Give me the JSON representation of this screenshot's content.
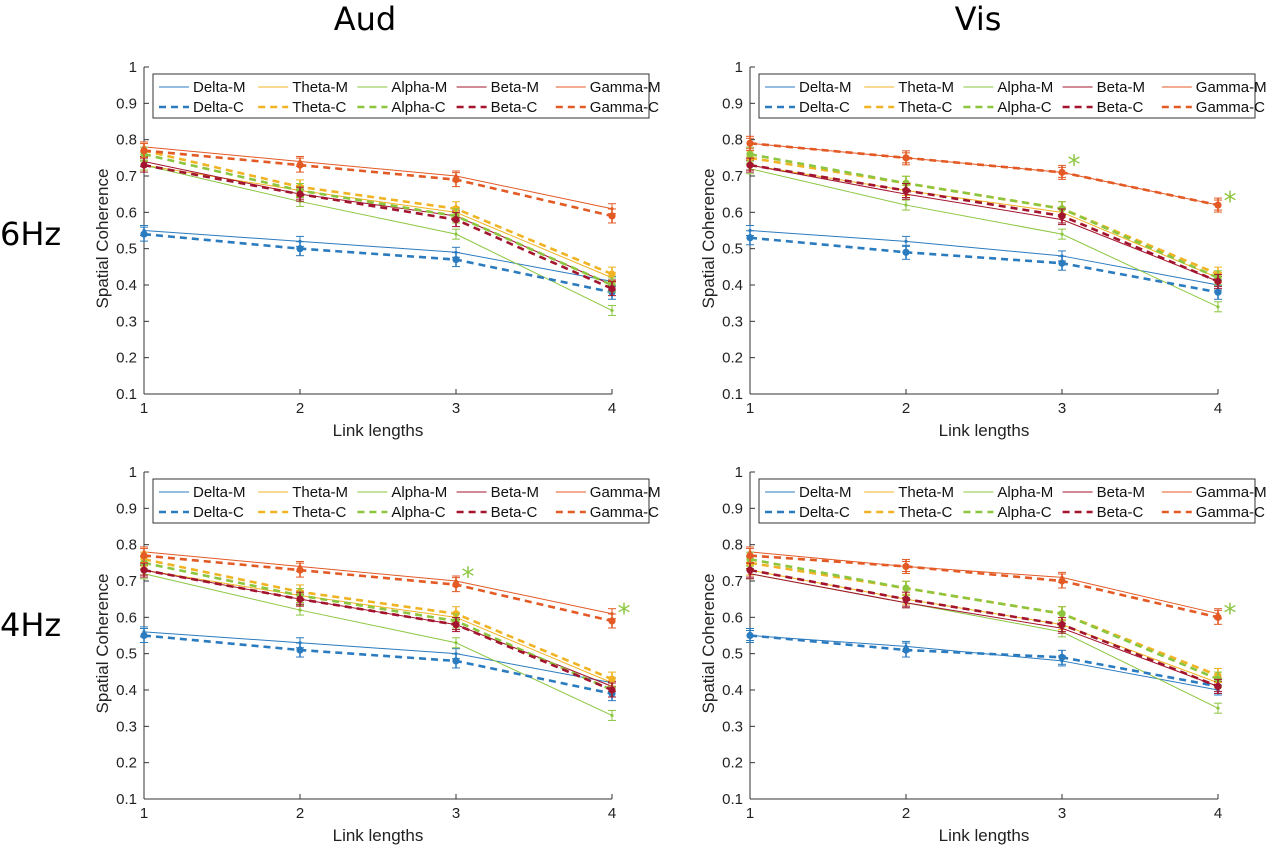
{
  "headers": {
    "columns": [
      "Aud",
      "Vis"
    ],
    "rows": [
      "6Hz",
      "4Hz"
    ]
  },
  "colors": {
    "Delta": "#2b7bbf",
    "Theta": "#f0b323",
    "Alpha": "#8cc63f",
    "Beta": "#a3152e",
    "Gamma": "#e35a25",
    "significance": "#8cc63f"
  },
  "chart_data": [
    {
      "type": "line",
      "panel": "Aud-6Hz",
      "xlabel": "Link lengths",
      "ylabel": "Spatial Coherence",
      "x": [
        1,
        2,
        3,
        4
      ],
      "xticks": [
        "1",
        "2",
        "3",
        "4"
      ],
      "ylim": [
        0.1,
        1
      ],
      "yticks": [
        "0.1",
        "0.2",
        "0.3",
        "0.4",
        "0.5",
        "0.6",
        "0.7",
        "0.8",
        "0.9",
        "1"
      ],
      "legend": "top",
      "series": [
        {
          "name": "Delta-M",
          "band": "Delta",
          "style": "solid",
          "values": [
            0.55,
            0.52,
            0.49,
            0.41
          ]
        },
        {
          "name": "Theta-M",
          "band": "Theta",
          "style": "solid",
          "values": [
            0.73,
            0.66,
            0.6,
            0.42
          ]
        },
        {
          "name": "Alpha-M",
          "band": "Alpha",
          "style": "solid",
          "values": [
            0.73,
            0.63,
            0.54,
            0.33
          ]
        },
        {
          "name": "Beta-M",
          "band": "Beta",
          "style": "solid",
          "values": [
            0.74,
            0.65,
            0.59,
            0.4
          ]
        },
        {
          "name": "Gamma-M",
          "band": "Gamma",
          "style": "solid",
          "values": [
            0.78,
            0.74,
            0.7,
            0.61
          ]
        },
        {
          "name": "Delta-C",
          "band": "Delta",
          "style": "dashed",
          "values": [
            0.54,
            0.5,
            0.47,
            0.38
          ]
        },
        {
          "name": "Theta-C",
          "band": "Theta",
          "style": "dashed",
          "values": [
            0.77,
            0.67,
            0.61,
            0.43
          ]
        },
        {
          "name": "Alpha-C",
          "band": "Alpha",
          "style": "dashed",
          "values": [
            0.76,
            0.66,
            0.59,
            0.4
          ]
        },
        {
          "name": "Beta-C",
          "band": "Beta",
          "style": "dashed",
          "values": [
            0.73,
            0.65,
            0.58,
            0.39
          ]
        },
        {
          "name": "Gamma-C",
          "band": "Gamma",
          "style": "dashed",
          "values": [
            0.77,
            0.73,
            0.69,
            0.59
          ]
        }
      ],
      "significance": []
    },
    {
      "type": "line",
      "panel": "Vis-6Hz",
      "xlabel": "Link lengths",
      "ylabel": "Spatial Coherence",
      "x": [
        1,
        2,
        3,
        4
      ],
      "xticks": [
        "1",
        "2",
        "3",
        "4"
      ],
      "ylim": [
        0.1,
        1
      ],
      "yticks": [
        "0.1",
        "0.2",
        "0.3",
        "0.4",
        "0.5",
        "0.6",
        "0.7",
        "0.8",
        "0.9",
        "1"
      ],
      "legend": "top",
      "series": [
        {
          "name": "Delta-M",
          "band": "Delta",
          "style": "solid",
          "values": [
            0.55,
            0.52,
            0.48,
            0.4
          ]
        },
        {
          "name": "Theta-M",
          "band": "Theta",
          "style": "solid",
          "values": [
            0.73,
            0.66,
            0.6,
            0.42
          ]
        },
        {
          "name": "Alpha-M",
          "band": "Alpha",
          "style": "solid",
          "values": [
            0.72,
            0.62,
            0.54,
            0.34
          ]
        },
        {
          "name": "Beta-M",
          "band": "Beta",
          "style": "solid",
          "values": [
            0.73,
            0.65,
            0.58,
            0.41
          ]
        },
        {
          "name": "Gamma-M",
          "band": "Gamma",
          "style": "solid",
          "values": [
            0.79,
            0.75,
            0.71,
            0.62
          ]
        },
        {
          "name": "Delta-C",
          "band": "Delta",
          "style": "dashed",
          "values": [
            0.53,
            0.49,
            0.46,
            0.38
          ]
        },
        {
          "name": "Theta-C",
          "band": "Theta",
          "style": "dashed",
          "values": [
            0.75,
            0.68,
            0.61,
            0.43
          ]
        },
        {
          "name": "Alpha-C",
          "band": "Alpha",
          "style": "dashed",
          "values": [
            0.76,
            0.68,
            0.61,
            0.42
          ]
        },
        {
          "name": "Beta-C",
          "band": "Beta",
          "style": "dashed",
          "values": [
            0.73,
            0.66,
            0.59,
            0.41
          ]
        },
        {
          "name": "Gamma-C",
          "band": "Gamma",
          "style": "dashed",
          "values": [
            0.79,
            0.75,
            0.71,
            0.62
          ]
        }
      ],
      "significance": [
        {
          "x": 3,
          "y": 0.74,
          "label": "*"
        },
        {
          "x": 4,
          "y": 0.64,
          "label": "*"
        }
      ]
    },
    {
      "type": "line",
      "panel": "Aud-4Hz",
      "xlabel": "Link lengths",
      "ylabel": "Spatial Coherence",
      "x": [
        1,
        2,
        3,
        4
      ],
      "xticks": [
        "1",
        "2",
        "3",
        "4"
      ],
      "ylim": [
        0.1,
        1
      ],
      "yticks": [
        "0.1",
        "0.2",
        "0.3",
        "0.4",
        "0.5",
        "0.6",
        "0.7",
        "0.8",
        "0.9",
        "1"
      ],
      "legend": "top",
      "series": [
        {
          "name": "Delta-M",
          "band": "Delta",
          "style": "solid",
          "values": [
            0.56,
            0.53,
            0.5,
            0.42
          ]
        },
        {
          "name": "Theta-M",
          "band": "Theta",
          "style": "solid",
          "values": [
            0.73,
            0.66,
            0.6,
            0.42
          ]
        },
        {
          "name": "Alpha-M",
          "band": "Alpha",
          "style": "solid",
          "values": [
            0.72,
            0.62,
            0.53,
            0.33
          ]
        },
        {
          "name": "Beta-M",
          "band": "Beta",
          "style": "solid",
          "values": [
            0.73,
            0.65,
            0.58,
            0.41
          ]
        },
        {
          "name": "Gamma-M",
          "band": "Gamma",
          "style": "solid",
          "values": [
            0.78,
            0.74,
            0.7,
            0.61
          ]
        },
        {
          "name": "Delta-C",
          "band": "Delta",
          "style": "dashed",
          "values": [
            0.55,
            0.51,
            0.48,
            0.39
          ]
        },
        {
          "name": "Theta-C",
          "band": "Theta",
          "style": "dashed",
          "values": [
            0.76,
            0.67,
            0.61,
            0.43
          ]
        },
        {
          "name": "Alpha-C",
          "band": "Alpha",
          "style": "dashed",
          "values": [
            0.75,
            0.66,
            0.59,
            0.4
          ]
        },
        {
          "name": "Beta-C",
          "band": "Beta",
          "style": "dashed",
          "values": [
            0.73,
            0.65,
            0.58,
            0.4
          ]
        },
        {
          "name": "Gamma-C",
          "band": "Gamma",
          "style": "dashed",
          "values": [
            0.77,
            0.73,
            0.69,
            0.59
          ]
        }
      ],
      "significance": [
        {
          "x": 3,
          "y": 0.72,
          "label": "*"
        },
        {
          "x": 4,
          "y": 0.62,
          "label": "*"
        }
      ]
    },
    {
      "type": "line",
      "panel": "Vis-4Hz",
      "xlabel": "Link lengths",
      "ylabel": "Spatial Coherence",
      "x": [
        1,
        2,
        3,
        4
      ],
      "xticks": [
        "1",
        "2",
        "3",
        "4"
      ],
      "ylim": [
        0.1,
        1
      ],
      "yticks": [
        "0.1",
        "0.2",
        "0.3",
        "0.4",
        "0.5",
        "0.6",
        "0.7",
        "0.8",
        "0.9",
        "1"
      ],
      "legend": "top",
      "series": [
        {
          "name": "Delta-M",
          "band": "Delta",
          "style": "solid",
          "values": [
            0.55,
            0.52,
            0.48,
            0.4
          ]
        },
        {
          "name": "Theta-M",
          "band": "Theta",
          "style": "solid",
          "values": [
            0.73,
            0.65,
            0.58,
            0.42
          ]
        },
        {
          "name": "Alpha-M",
          "band": "Alpha",
          "style": "solid",
          "values": [
            0.72,
            0.64,
            0.56,
            0.35
          ]
        },
        {
          "name": "Beta-M",
          "band": "Beta",
          "style": "solid",
          "values": [
            0.72,
            0.64,
            0.57,
            0.41
          ]
        },
        {
          "name": "Gamma-M",
          "band": "Gamma",
          "style": "solid",
          "values": [
            0.78,
            0.74,
            0.71,
            0.61
          ]
        },
        {
          "name": "Delta-C",
          "band": "Delta",
          "style": "dashed",
          "values": [
            0.55,
            0.51,
            0.49,
            0.41
          ]
        },
        {
          "name": "Theta-C",
          "band": "Theta",
          "style": "dashed",
          "values": [
            0.75,
            0.68,
            0.61,
            0.44
          ]
        },
        {
          "name": "Alpha-C",
          "band": "Alpha",
          "style": "dashed",
          "values": [
            0.76,
            0.68,
            0.61,
            0.43
          ]
        },
        {
          "name": "Beta-C",
          "band": "Beta",
          "style": "dashed",
          "values": [
            0.73,
            0.65,
            0.58,
            0.41
          ]
        },
        {
          "name": "Gamma-C",
          "band": "Gamma",
          "style": "dashed",
          "values": [
            0.77,
            0.74,
            0.7,
            0.6
          ]
        }
      ],
      "significance": [
        {
          "x": 4,
          "y": 0.62,
          "label": "*"
        }
      ]
    }
  ]
}
